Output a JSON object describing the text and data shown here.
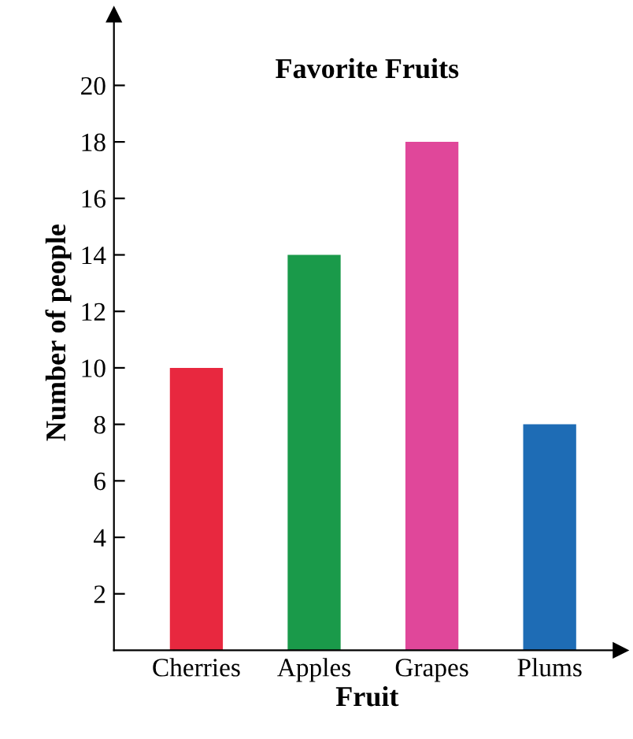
{
  "chart_data": {
    "type": "bar",
    "title": "Favorite Fruits",
    "xlabel": "Fruit",
    "ylabel": "Number of people",
    "categories": [
      "Cherries",
      "Apples",
      "Grapes",
      "Plums"
    ],
    "values": [
      10,
      14,
      18,
      8
    ],
    "colors": [
      "#e8283f",
      "#1a9a4a",
      "#e0479a",
      "#1e6cb5"
    ],
    "ylim": [
      0,
      22.5
    ],
    "yticks": [
      2,
      4,
      6,
      8,
      10,
      12,
      14,
      16,
      18,
      20
    ],
    "grid": false,
    "legend": false
  }
}
